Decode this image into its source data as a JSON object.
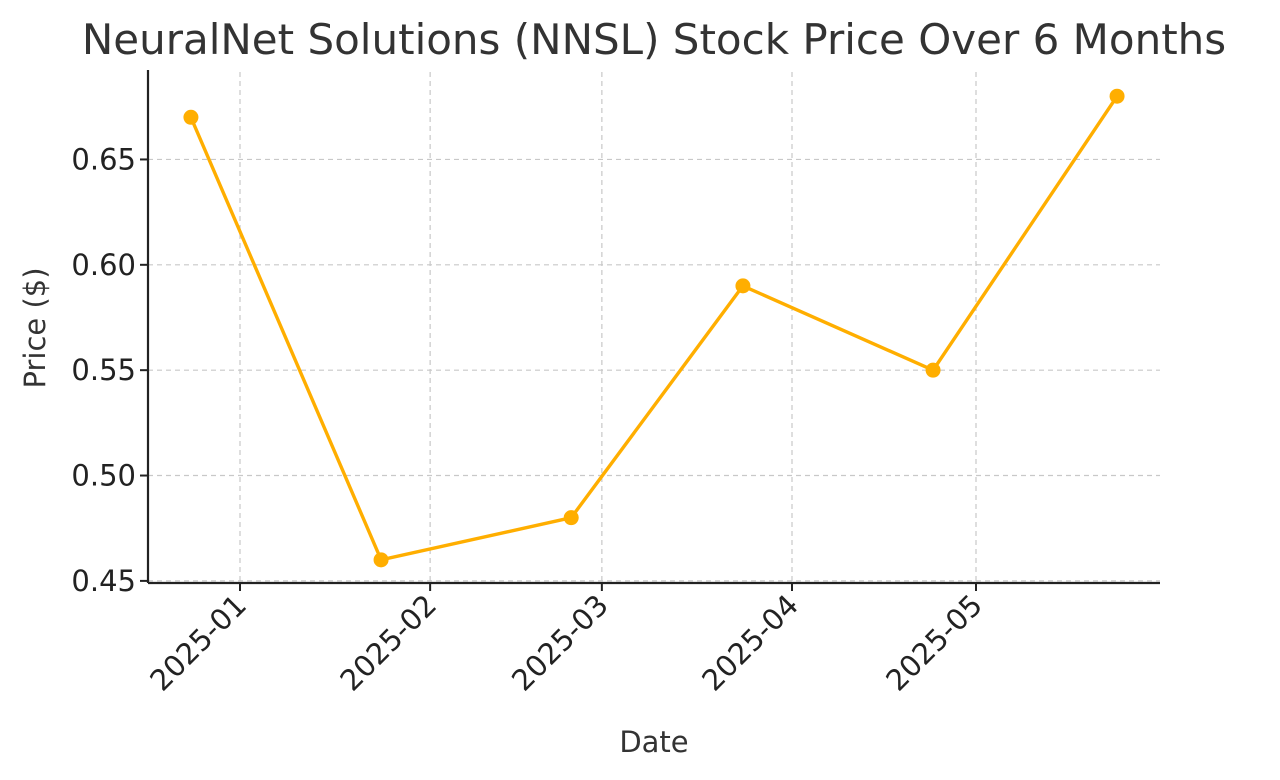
{
  "chart_data": {
    "type": "line",
    "title": "NeuralNet Solutions (NNSL) Stock Price Over 6 Months",
    "xlabel": "Date",
    "ylabel": "Price ($)",
    "x": [
      "2024-12-24",
      "2025-01-24",
      "2025-02-24",
      "2025-03-24",
      "2025-04-24",
      "2025-05-24"
    ],
    "series": [
      {
        "values": [
          0.67,
          0.46,
          0.48,
          0.59,
          0.55,
          0.68
        ],
        "color": "#FFAE00"
      }
    ],
    "x_ticks": [
      "2025-01-01",
      "2025-02-01",
      "2025-03-01",
      "2025-04-01",
      "2025-05-01"
    ],
    "x_tick_labels": [
      "2025-01",
      "2025-02",
      "2025-03",
      "2025-04",
      "2025-05"
    ],
    "y_ticks": [
      0.45,
      0.5,
      0.55,
      0.6,
      0.65
    ],
    "y_tick_labels": [
      "0.45",
      "0.50",
      "0.55",
      "0.60",
      "0.65"
    ],
    "xlim": [
      "2024-12-17",
      "2025-05-31"
    ],
    "ylim": [
      0.449,
      0.6915
    ],
    "grid": true,
    "legend": "none"
  }
}
